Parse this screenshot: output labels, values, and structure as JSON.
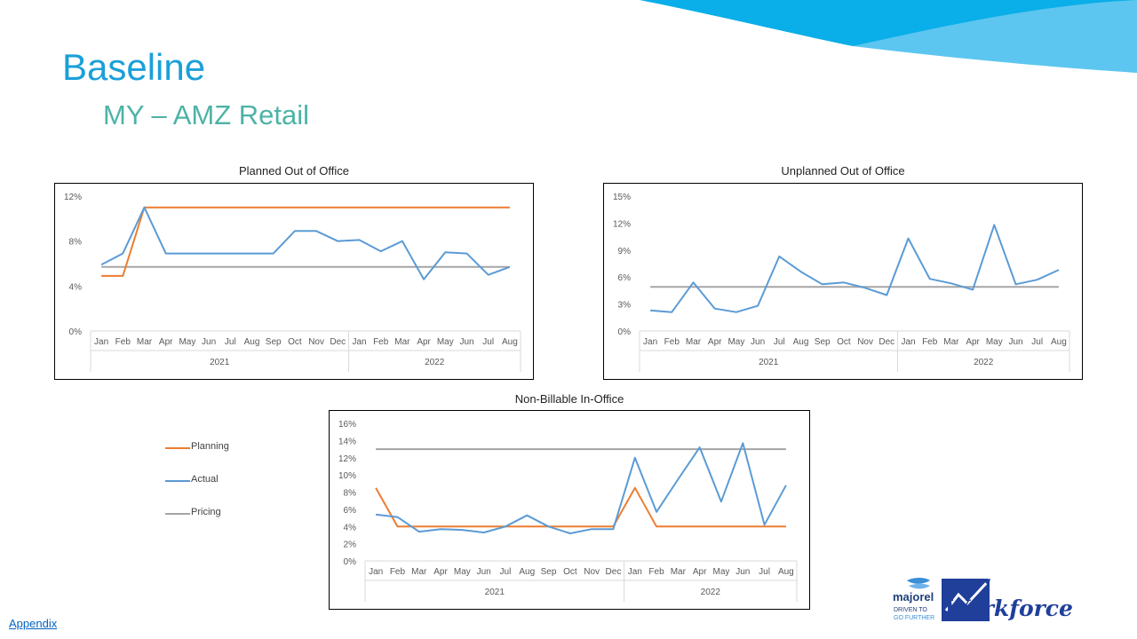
{
  "slide": {
    "title": "Baseline",
    "subtitle": "MY – AMZ Retail",
    "appendix_link": "Appendix"
  },
  "colors": {
    "title": "#1aa0d8",
    "subtitle": "#4db3a6",
    "planning": "#ed7d31",
    "actual": "#5b9bd5",
    "pricing": "#a5a5a5",
    "banner_dark": "#0aaee8",
    "banner_light": "#5cc6f0"
  },
  "legend": [
    {
      "label": "Planning",
      "color": "#ed7d31"
    },
    {
      "label": "Actual",
      "color": "#5b9bd5"
    },
    {
      "label": "Pricing",
      "color": "#a5a5a5"
    }
  ],
  "logo": {
    "brand": "majorel",
    "tagline_1": "DRIVEN TO",
    "tagline_2": "GO FURTHER",
    "workforce": "Workforce",
    "icon": "majorel-logo-icon"
  },
  "chart_data": [
    {
      "type": "line",
      "title": "Planned Out of Office",
      "categories": [
        "Jan",
        "Feb",
        "Mar",
        "Apr",
        "May",
        "Jun",
        "Jul",
        "Aug",
        "Sep",
        "Oct",
        "Nov",
        "Dec",
        "Jan",
        "Feb",
        "Mar",
        "Apr",
        "May",
        "Jun",
        "Jul",
        "Aug"
      ],
      "groups": [
        {
          "label": "2021",
          "count": 12
        },
        {
          "label": "2022",
          "count": 8
        }
      ],
      "yticks": [
        0,
        4,
        8,
        12
      ],
      "ylim": [
        0,
        12
      ],
      "ytick_suffix": "%",
      "series": [
        {
          "name": "Planning",
          "color": "#ed7d31",
          "values": [
            4.9,
            4.9,
            11,
            11,
            11,
            11,
            11,
            11,
            11,
            11,
            11,
            11,
            11,
            11,
            11,
            11,
            11,
            11,
            11,
            11
          ]
        },
        {
          "name": "Actual",
          "color": "#5b9bd5",
          "values": [
            5.9,
            6.9,
            11,
            6.9,
            6.9,
            6.9,
            6.9,
            6.9,
            6.9,
            8.9,
            8.9,
            8.0,
            8.1,
            7.1,
            8.0,
            4.6,
            7.0,
            6.9,
            5.0,
            5.7
          ]
        },
        {
          "name": "Pricing",
          "color": "#a5a5a5",
          "values": [
            5.7,
            5.7,
            5.7,
            5.7,
            5.7,
            5.7,
            5.7,
            5.7,
            5.7,
            5.7,
            5.7,
            5.7,
            5.7,
            5.7,
            5.7,
            5.7,
            5.7,
            5.7,
            5.7,
            5.7
          ]
        }
      ]
    },
    {
      "type": "line",
      "title": "Unplanned Out of Office",
      "categories": [
        "Jan",
        "Feb",
        "Mar",
        "Apr",
        "May",
        "Jun",
        "Jul",
        "Aug",
        "Sep",
        "Oct",
        "Nov",
        "Dec",
        "Jan",
        "Feb",
        "Mar",
        "Apr",
        "May",
        "Jun",
        "Jul",
        "Aug"
      ],
      "groups": [
        {
          "label": "2021",
          "count": 12
        },
        {
          "label": "2022",
          "count": 8
        }
      ],
      "yticks": [
        0,
        3,
        6,
        9,
        12,
        15
      ],
      "ylim": [
        0,
        15
      ],
      "ytick_suffix": "%",
      "series": [
        {
          "name": "Actual",
          "color": "#5b9bd5",
          "values": [
            2.3,
            2.1,
            5.4,
            2.5,
            2.1,
            2.8,
            8.3,
            6.6,
            5.2,
            5.4,
            4.8,
            4.0,
            10.3,
            5.8,
            5.3,
            4.6,
            11.8,
            5.2,
            5.7,
            6.8
          ]
        },
        {
          "name": "Pricing",
          "color": "#a5a5a5",
          "values": [
            4.9,
            4.9,
            4.9,
            4.9,
            4.9,
            4.9,
            4.9,
            4.9,
            4.9,
            4.9,
            4.9,
            4.9,
            4.9,
            4.9,
            4.9,
            4.9,
            4.9,
            4.9,
            4.9,
            4.9
          ]
        }
      ]
    },
    {
      "type": "line",
      "title": "Non-Billable In-Office",
      "categories": [
        "Jan",
        "Feb",
        "Mar",
        "Apr",
        "May",
        "Jun",
        "Jul",
        "Aug",
        "Sep",
        "Oct",
        "Nov",
        "Dec",
        "Jan",
        "Feb",
        "Mar",
        "Apr",
        "May",
        "Jun",
        "Jul",
        "Aug"
      ],
      "groups": [
        {
          "label": "2021",
          "count": 12
        },
        {
          "label": "2022",
          "count": 8
        }
      ],
      "yticks": [
        0,
        2,
        4,
        6,
        8,
        10,
        12,
        14,
        16
      ],
      "ylim": [
        0,
        16
      ],
      "ytick_suffix": "%",
      "series": [
        {
          "name": "Planning",
          "color": "#ed7d31",
          "values": [
            8.5,
            4.0,
            4.0,
            4.0,
            4.0,
            4.0,
            4.0,
            4.0,
            4.0,
            4.0,
            4.0,
            4.0,
            8.5,
            4.0,
            4.0,
            4.0,
            4.0,
            4.0,
            4.0,
            4.0
          ]
        },
        {
          "name": "Actual",
          "color": "#5b9bd5",
          "values": [
            5.4,
            5.1,
            3.4,
            3.7,
            3.6,
            3.3,
            4.0,
            5.3,
            4.0,
            3.2,
            3.7,
            3.7,
            12.0,
            5.7,
            9.5,
            13.2,
            6.9,
            13.7,
            4.2,
            8.8
          ]
        },
        {
          "name": "Pricing",
          "color": "#a5a5a5",
          "values": [
            13.0,
            13.0,
            13.0,
            13.0,
            13.0,
            13.0,
            13.0,
            13.0,
            13.0,
            13.0,
            13.0,
            13.0,
            13.0,
            13.0,
            13.0,
            13.0,
            13.0,
            13.0,
            13.0,
            13.0
          ]
        }
      ]
    }
  ]
}
